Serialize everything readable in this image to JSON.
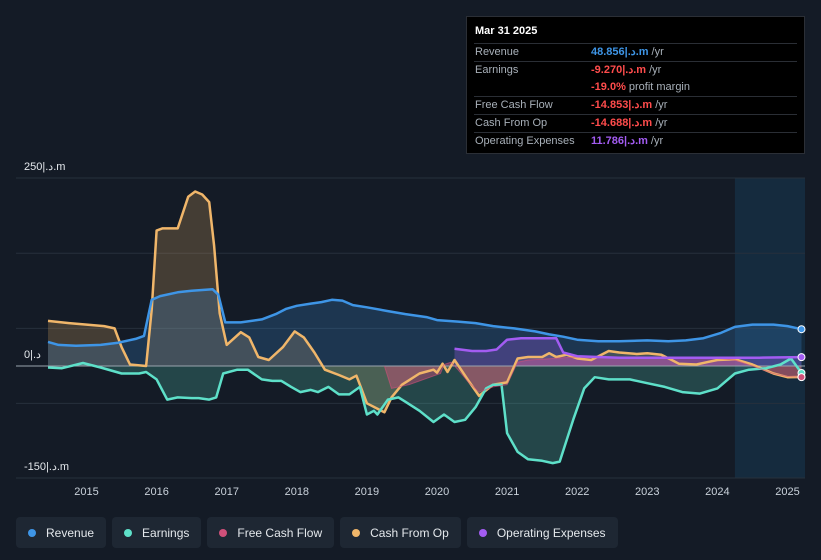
{
  "tooltip": {
    "date": "Mar 31 2025",
    "rows": [
      {
        "label": "Revenue",
        "value": "48.856|.د.m",
        "unit": "/yr",
        "color": "#3e95e6"
      },
      {
        "label": "Earnings",
        "value": "-9.270|.د.m",
        "unit": "/yr",
        "color": "#ff4c4c"
      },
      {
        "label": "",
        "value": "-19.0%",
        "unit": "profit margin",
        "color": "#ff4c4c"
      },
      {
        "label": "Free Cash Flow",
        "value": "-14.853|.د.m",
        "unit": "/yr",
        "color": "#ff4c4c"
      },
      {
        "label": "Cash From Op",
        "value": "-14.688|.د.m",
        "unit": "/yr",
        "color": "#ff4c4c"
      },
      {
        "label": "Operating Expenses",
        "value": "11.786|.د.m",
        "unit": "/yr",
        "color": "#a35cf2"
      }
    ]
  },
  "legend": [
    {
      "label": "Revenue",
      "color": "#3e95e6"
    },
    {
      "label": "Earnings",
      "color": "#5ee0c9"
    },
    {
      "label": "Free Cash Flow",
      "color": "#d0507a"
    },
    {
      "label": "Cash From Op",
      "color": "#f0b66a"
    },
    {
      "label": "Operating Expenses",
      "color": "#a35cf2"
    }
  ],
  "chart_data": {
    "type": "area",
    "title": "",
    "xlabel": "",
    "ylabel": "",
    "x_range": [
      2014.45,
      2025.25
    ],
    "ylim": [
      -150,
      250
    ],
    "y_tick_labels": [
      {
        "value": 250,
        "label": "250|.د.m"
      },
      {
        "value": 0,
        "label": "0|.د"
      },
      {
        "value": -150,
        "label": "-150|.د.m"
      }
    ],
    "x_ticks": [
      2015,
      2016,
      2017,
      2018,
      2019,
      2020,
      2021,
      2022,
      2023,
      2024,
      2025
    ],
    "x_tick_labels": [
      "2015",
      "2016",
      "2017",
      "2018",
      "2019",
      "2020",
      "2021",
      "2022",
      "2023",
      "2024",
      "2025"
    ],
    "forecast_start": 2024.25,
    "grid": true,
    "series": [
      {
        "name": "Cash From Op",
        "color": "#f0b66a",
        "points": [
          [
            2014.45,
            60
          ],
          [
            2014.75,
            57
          ],
          [
            2015.0,
            55
          ],
          [
            2015.25,
            53
          ],
          [
            2015.4,
            50
          ],
          [
            2015.5,
            25
          ],
          [
            2015.62,
            2
          ],
          [
            2015.85,
            0
          ],
          [
            2015.93,
            75
          ],
          [
            2016.0,
            180
          ],
          [
            2016.08,
            183
          ],
          [
            2016.3,
            183
          ],
          [
            2016.45,
            225
          ],
          [
            2016.55,
            232
          ],
          [
            2016.65,
            228
          ],
          [
            2016.75,
            218
          ],
          [
            2016.82,
            160
          ],
          [
            2016.9,
            70
          ],
          [
            2017.0,
            28
          ],
          [
            2017.2,
            45
          ],
          [
            2017.32,
            38
          ],
          [
            2017.45,
            12
          ],
          [
            2017.6,
            8
          ],
          [
            2017.8,
            25
          ],
          [
            2017.97,
            46
          ],
          [
            2018.1,
            38
          ],
          [
            2018.25,
            18
          ],
          [
            2018.4,
            -5
          ],
          [
            2018.6,
            -12
          ],
          [
            2018.75,
            -18
          ],
          [
            2018.85,
            -13
          ],
          [
            2018.9,
            -25
          ],
          [
            2019.0,
            -50
          ],
          [
            2019.25,
            -62
          ],
          [
            2019.35,
            -42
          ],
          [
            2019.5,
            -25
          ],
          [
            2019.75,
            -10
          ],
          [
            2019.95,
            -5
          ],
          [
            2020.0,
            -9
          ],
          [
            2020.08,
            3
          ],
          [
            2020.15,
            -8
          ],
          [
            2020.25,
            8
          ],
          [
            2020.33,
            -3
          ],
          [
            2020.45,
            -20
          ],
          [
            2020.6,
            -40
          ],
          [
            2020.8,
            -25
          ],
          [
            2021.0,
            -22
          ],
          [
            2021.15,
            10
          ],
          [
            2021.3,
            12
          ],
          [
            2021.5,
            12
          ],
          [
            2021.6,
            17
          ],
          [
            2021.7,
            12
          ],
          [
            2021.85,
            15
          ],
          [
            2022.0,
            10
          ],
          [
            2022.2,
            8
          ],
          [
            2022.45,
            20
          ],
          [
            2022.6,
            18
          ],
          [
            2022.85,
            16
          ],
          [
            2023.0,
            17
          ],
          [
            2023.2,
            15
          ],
          [
            2023.35,
            8
          ],
          [
            2023.45,
            3
          ],
          [
            2023.7,
            2
          ],
          [
            2023.85,
            5
          ],
          [
            2024.0,
            8
          ],
          [
            2024.25,
            9
          ],
          [
            2024.5,
            2
          ],
          [
            2024.8,
            -10
          ],
          [
            2025.0,
            -15
          ],
          [
            2025.2,
            -14.7
          ]
        ]
      },
      {
        "name": "Revenue",
        "color": "#3e95e6",
        "points": [
          [
            2014.45,
            32
          ],
          [
            2014.6,
            28
          ],
          [
            2014.85,
            27
          ],
          [
            2015.2,
            28
          ],
          [
            2015.45,
            31
          ],
          [
            2015.7,
            36
          ],
          [
            2015.82,
            40
          ],
          [
            2015.93,
            88
          ],
          [
            2016.05,
            93
          ],
          [
            2016.3,
            98
          ],
          [
            2016.5,
            100
          ],
          [
            2016.8,
            102
          ],
          [
            2016.88,
            95
          ],
          [
            2016.98,
            58
          ],
          [
            2017.2,
            58
          ],
          [
            2017.5,
            62
          ],
          [
            2017.7,
            69
          ],
          [
            2017.85,
            76
          ],
          [
            2018.0,
            80
          ],
          [
            2018.2,
            83
          ],
          [
            2018.35,
            85
          ],
          [
            2018.5,
            88
          ],
          [
            2018.65,
            87
          ],
          [
            2018.8,
            81
          ],
          [
            2019.0,
            78
          ],
          [
            2019.3,
            73
          ],
          [
            2019.55,
            69
          ],
          [
            2019.85,
            65
          ],
          [
            2020.0,
            61
          ],
          [
            2020.3,
            59
          ],
          [
            2020.55,
            57
          ],
          [
            2020.8,
            53
          ],
          [
            2021.1,
            50
          ],
          [
            2021.4,
            46
          ],
          [
            2021.6,
            42
          ],
          [
            2021.8,
            39
          ],
          [
            2022.0,
            35
          ],
          [
            2022.3,
            33
          ],
          [
            2022.6,
            33
          ],
          [
            2023.0,
            34
          ],
          [
            2023.3,
            33
          ],
          [
            2023.55,
            34
          ],
          [
            2023.8,
            37
          ],
          [
            2024.05,
            44
          ],
          [
            2024.25,
            52
          ],
          [
            2024.5,
            55
          ],
          [
            2024.8,
            55
          ],
          [
            2025.0,
            53
          ],
          [
            2025.2,
            48.9
          ]
        ]
      },
      {
        "name": "Earnings",
        "color": "#5ee0c9",
        "points": [
          [
            2014.45,
            -2
          ],
          [
            2014.65,
            -3
          ],
          [
            2014.95,
            4
          ],
          [
            2015.2,
            -2
          ],
          [
            2015.5,
            -10
          ],
          [
            2015.75,
            -10
          ],
          [
            2015.85,
            -8
          ],
          [
            2016.0,
            -18
          ],
          [
            2016.15,
            -45
          ],
          [
            2016.3,
            -42
          ],
          [
            2016.5,
            -43
          ],
          [
            2016.6,
            -43
          ],
          [
            2016.75,
            -45
          ],
          [
            2016.85,
            -42
          ],
          [
            2016.95,
            -10
          ],
          [
            2017.15,
            -5
          ],
          [
            2017.3,
            -5
          ],
          [
            2017.5,
            -18
          ],
          [
            2017.65,
            -20
          ],
          [
            2017.78,
            -20
          ],
          [
            2017.92,
            -28
          ],
          [
            2018.05,
            -35
          ],
          [
            2018.2,
            -32
          ],
          [
            2018.3,
            -35
          ],
          [
            2018.45,
            -28
          ],
          [
            2018.6,
            -38
          ],
          [
            2018.75,
            -38
          ],
          [
            2018.9,
            -28
          ],
          [
            2019.0,
            -65
          ],
          [
            2019.1,
            -60
          ],
          [
            2019.15,
            -65
          ],
          [
            2019.3,
            -45
          ],
          [
            2019.45,
            -42
          ],
          [
            2019.55,
            -48
          ],
          [
            2019.75,
            -60
          ],
          [
            2019.95,
            -75
          ],
          [
            2020.1,
            -65
          ],
          [
            2020.25,
            -75
          ],
          [
            2020.4,
            -72
          ],
          [
            2020.55,
            -55
          ],
          [
            2020.7,
            -30
          ],
          [
            2020.8,
            -25
          ],
          [
            2020.92,
            -25
          ],
          [
            2021.0,
            -90
          ],
          [
            2021.15,
            -115
          ],
          [
            2021.3,
            -125
          ],
          [
            2021.5,
            -127
          ],
          [
            2021.65,
            -130
          ],
          [
            2021.75,
            -128
          ],
          [
            2021.95,
            -70
          ],
          [
            2022.1,
            -30
          ],
          [
            2022.25,
            -15
          ],
          [
            2022.45,
            -18
          ],
          [
            2022.75,
            -18
          ],
          [
            2023.0,
            -23
          ],
          [
            2023.25,
            -28
          ],
          [
            2023.5,
            -35
          ],
          [
            2023.75,
            -37
          ],
          [
            2024.0,
            -30
          ],
          [
            2024.25,
            -10
          ],
          [
            2024.45,
            -5
          ],
          [
            2024.7,
            -3
          ],
          [
            2024.9,
            2
          ],
          [
            2025.05,
            10
          ],
          [
            2025.2,
            -9.3
          ]
        ]
      },
      {
        "name": "Free Cash Flow",
        "color": "#d0507a",
        "points": [
          [
            2019.25,
            0
          ],
          [
            2019.35,
            -30
          ],
          [
            2019.6,
            -25
          ],
          [
            2019.9,
            -15
          ],
          [
            2020.05,
            -10
          ],
          [
            2020.1,
            2
          ],
          [
            2020.2,
            5
          ],
          [
            2020.3,
            -5
          ],
          [
            2020.45,
            -22
          ],
          [
            2020.6,
            -35
          ],
          [
            2020.8,
            -28
          ],
          [
            2021.0,
            -25
          ],
          [
            2021.15,
            5
          ],
          [
            2021.3,
            8
          ],
          [
            2021.5,
            9
          ],
          [
            2021.65,
            10
          ],
          [
            2021.8,
            11
          ],
          [
            2022.0,
            12
          ],
          [
            2022.3,
            11
          ],
          [
            2022.6,
            10
          ],
          [
            2022.9,
            10
          ],
          [
            2023.2,
            11
          ],
          [
            2023.5,
            10
          ],
          [
            2023.8,
            10
          ],
          [
            2024.0,
            10
          ],
          [
            2024.25,
            8
          ],
          [
            2024.5,
            0
          ],
          [
            2024.8,
            -10
          ],
          [
            2025.0,
            -14
          ],
          [
            2025.2,
            -14.9
          ]
        ]
      },
      {
        "name": "Operating Expenses",
        "color": "#a35cf2",
        "points": [
          [
            2020.25,
            23
          ],
          [
            2020.5,
            20
          ],
          [
            2020.7,
            20
          ],
          [
            2020.85,
            22
          ],
          [
            2021.0,
            35
          ],
          [
            2021.2,
            37
          ],
          [
            2021.5,
            37
          ],
          [
            2021.7,
            37
          ],
          [
            2021.8,
            18
          ],
          [
            2022.0,
            13
          ],
          [
            2022.3,
            12
          ],
          [
            2022.6,
            11
          ],
          [
            2022.9,
            11
          ],
          [
            2023.2,
            11
          ],
          [
            2023.5,
            11
          ],
          [
            2023.8,
            11
          ],
          [
            2024.0,
            11
          ],
          [
            2024.3,
            11
          ],
          [
            2024.6,
            11
          ],
          [
            2024.9,
            11.5
          ],
          [
            2025.2,
            11.8
          ]
        ]
      }
    ]
  }
}
